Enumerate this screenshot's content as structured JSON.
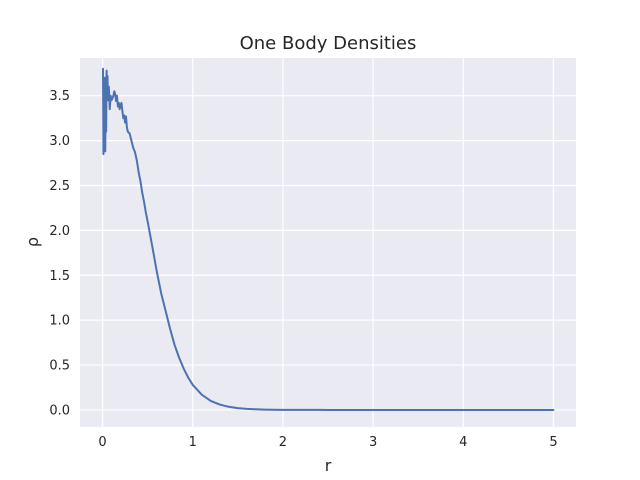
{
  "chart_data": {
    "type": "line",
    "title": "One Body Densities",
    "xlabel": "r",
    "ylabel": "ρ",
    "xlim": [
      -0.25,
      5.25
    ],
    "ylim": [
      -0.19,
      3.92
    ],
    "grid": true,
    "x_ticks": [
      0,
      1,
      2,
      3,
      4,
      5
    ],
    "x_tick_labels": [
      "0",
      "1",
      "2",
      "3",
      "4",
      "5"
    ],
    "y_ticks": [
      0.0,
      0.5,
      1.0,
      1.5,
      2.0,
      2.5,
      3.0,
      3.5
    ],
    "y_tick_labels": [
      "0.0",
      "0.5",
      "1.0",
      "1.5",
      "2.0",
      "2.5",
      "3.0",
      "3.5"
    ],
    "colors": {
      "plot_background": "#eaeaf2",
      "grid": "#ffffff",
      "series": "#4c72b0"
    },
    "series": [
      {
        "x": [
          0.005,
          0.01,
          0.015,
          0.02,
          0.025,
          0.03,
          0.035,
          0.04,
          0.045,
          0.05,
          0.055,
          0.06,
          0.07,
          0.08,
          0.09,
          0.1,
          0.11,
          0.12,
          0.13,
          0.14,
          0.15,
          0.16,
          0.17,
          0.18,
          0.19,
          0.2,
          0.21,
          0.22,
          0.23,
          0.24,
          0.25,
          0.26,
          0.27,
          0.28,
          0.3,
          0.32,
          0.34,
          0.36,
          0.38,
          0.4,
          0.42,
          0.44,
          0.46,
          0.48,
          0.5,
          0.55,
          0.6,
          0.65,
          0.7,
          0.75,
          0.8,
          0.85,
          0.9,
          0.95,
          1.0,
          1.1,
          1.2,
          1.3,
          1.4,
          1.5,
          1.6,
          1.7,
          1.8,
          1.9,
          2.0,
          2.1,
          2.2,
          2.3,
          2.4,
          2.5,
          2.6,
          2.8,
          3.0,
          3.5,
          4.0,
          4.5,
          5.0
        ],
        "y": [
          3.8,
          2.85,
          3.45,
          2.9,
          3.7,
          2.88,
          3.6,
          3.1,
          3.78,
          3.5,
          3.72,
          3.45,
          3.6,
          3.35,
          3.5,
          3.45,
          3.47,
          3.5,
          3.55,
          3.52,
          3.44,
          3.5,
          3.38,
          3.42,
          3.35,
          3.4,
          3.42,
          3.33,
          3.25,
          3.28,
          3.2,
          3.27,
          3.15,
          3.1,
          3.08,
          3.0,
          2.92,
          2.87,
          2.78,
          2.65,
          2.55,
          2.42,
          2.32,
          2.2,
          2.1,
          1.83,
          1.55,
          1.3,
          1.1,
          0.9,
          0.72,
          0.58,
          0.46,
          0.36,
          0.28,
          0.17,
          0.1,
          0.06,
          0.035,
          0.02,
          0.012,
          0.007,
          0.004,
          0.002,
          0.0012,
          0.0007,
          0.0004,
          0.0002,
          0.0001,
          5e-05,
          3e-05,
          1e-05,
          0.0,
          0.0,
          0.0,
          0.0,
          0.0
        ]
      }
    ]
  }
}
